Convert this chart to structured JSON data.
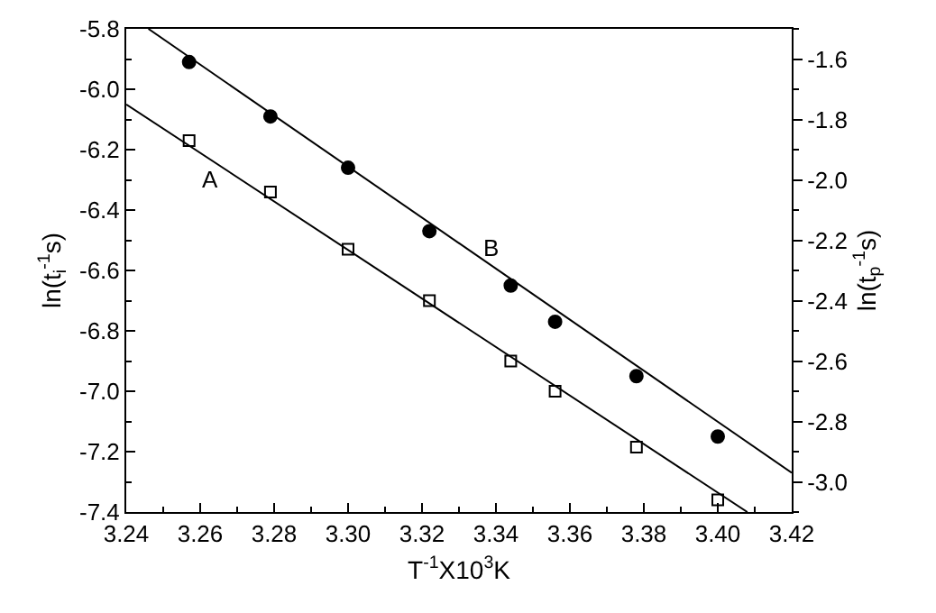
{
  "chart_data": {
    "type": "scatter",
    "xlabel": "T$^{-1}$X10$^{3}$K",
    "ylabel": "ln(t$_{i}$$^{-1}$s)",
    "y2label": "ln(t$_{p}$$^{-1}$s)",
    "xlim": [
      3.24,
      3.42
    ],
    "xticks": [
      3.24,
      3.26,
      3.28,
      {
        "value": 3.3,
        "label": "3.30"
      },
      3.32,
      3.34,
      3.36,
      3.38,
      {
        "value": 3.4,
        "label": "3.40"
      },
      3.42
    ],
    "ylim": [
      -7.4,
      -5.8
    ],
    "yticks": [
      -7.4,
      -7.2,
      {
        "value": -7,
        "label": "-7.0"
      },
      -6.8,
      -6.6,
      -6.4,
      -6.2,
      {
        "value": -6,
        "label": "-6.0"
      },
      -5.8
    ],
    "y2lim": [
      -3.1,
      -1.5
    ],
    "y2ticks": [
      {
        "value": -3,
        "label": "-3.0"
      },
      -2.8,
      -2.6,
      -2.4,
      -2.2,
      {
        "value": -2,
        "label": "-2.0"
      },
      -1.8,
      -1.6
    ],
    "grid": false,
    "series": [
      {
        "type": "scatter",
        "marker": "square",
        "color": "#000000",
        "x": [
          3.257,
          3.279,
          3.3,
          3.322,
          3.344,
          3.356,
          3.378,
          3.4
        ],
        "values": [
          -6.17,
          -6.34,
          -6.53,
          -6.7,
          -6.9,
          -7.0,
          -7.185,
          -7.36
        ]
      },
      {
        "type": "scatter",
        "marker": "circle",
        "axis": "y2",
        "color": "#000000",
        "x": [
          3.257,
          3.279,
          3.3,
          3.322,
          3.344,
          3.356,
          3.378,
          3.4
        ],
        "values": [
          -1.61,
          -1.79,
          -1.96,
          -2.17,
          -2.35,
          -2.47,
          -2.65,
          -2.85
        ]
      },
      {
        "type": "line",
        "marker": "none",
        "line_style": "solid",
        "color": "#000000",
        "x": [
          3.24,
          3.408
        ],
        "values": [
          -6.05,
          -7.4
        ]
      },
      {
        "type": "line",
        "marker": "none",
        "line_style": "solid",
        "axis": "y2",
        "color": "#000000",
        "x": [
          3.246,
          3.42
        ],
        "values": [
          -1.5,
          -2.97
        ]
      }
    ],
    "annotations": [
      "A",
      "B"
    ]
  }
}
